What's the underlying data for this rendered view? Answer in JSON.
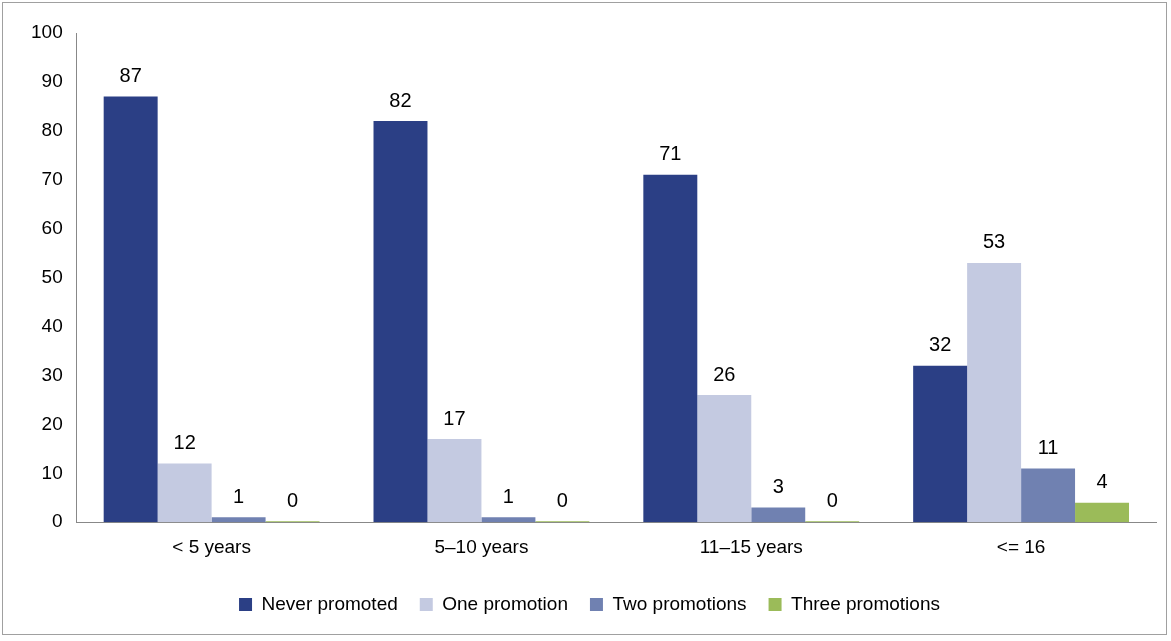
{
  "chart_data": {
    "type": "bar",
    "categories": [
      "< 5 years",
      "5–10 years",
      "11–15 years",
      "<= 16"
    ],
    "series": [
      {
        "name": "Never promoted",
        "color": "#2b3f85",
        "values": [
          87,
          82,
          71,
          32
        ]
      },
      {
        "name": "One promotion",
        "color": "#c4cae1",
        "values": [
          12,
          17,
          26,
          53
        ]
      },
      {
        "name": "Two promotions",
        "color": "#7081b1",
        "values": [
          1,
          1,
          3,
          11
        ]
      },
      {
        "name": "Three promotions",
        "color": "#9bbb59",
        "values": [
          0,
          0,
          0,
          4
        ]
      }
    ],
    "ylim": [
      0,
      100
    ],
    "yticks": [
      0,
      10,
      20,
      30,
      40,
      50,
      60,
      70,
      80,
      90,
      100
    ],
    "grid": false,
    "legend": "bottom",
    "data_labels": true
  }
}
